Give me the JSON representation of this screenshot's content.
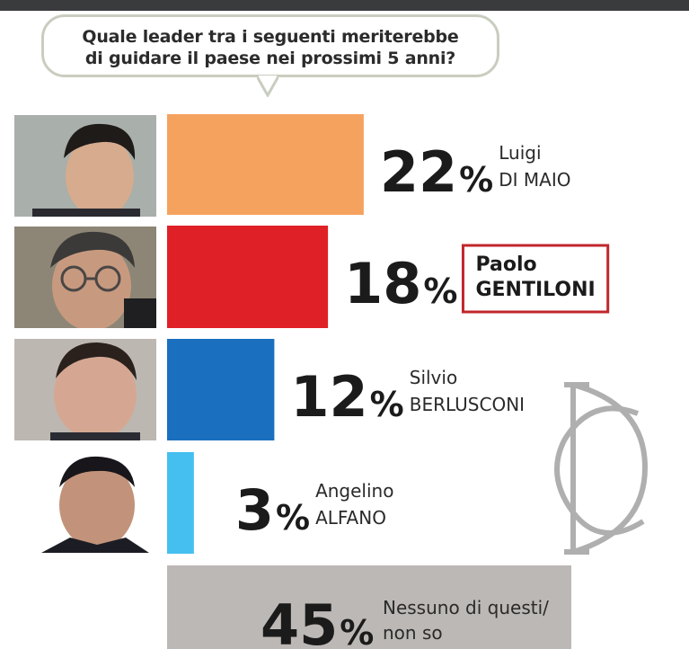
{
  "question": "Quale leader tra i seguenti meriterebbe\ndi guidare il paese nei prossimi 5 anni?",
  "colors": {
    "topbar": "#3a3b3d",
    "bubble_border": "#c9cdbf",
    "highlight_box": "#c0272d"
  },
  "chart_data": {
    "type": "bar",
    "orientation": "horizontal",
    "unit": "%",
    "title": "Quale leader tra i seguenti meriterebbe di guidare il paese nei prossimi 5 anni?",
    "xlim": [
      0,
      100
    ],
    "bars": [
      {
        "value": 22,
        "label": "22%",
        "name_line1": "Luigi",
        "name_line2": "DI MAIO",
        "color": "#f6a25f",
        "photo": "portrait-luigi-di-maio",
        "highlight": false
      },
      {
        "value": 18,
        "label": "18%",
        "name_line1": "Paolo",
        "name_line2": "GENTILONI",
        "color": "#e02027",
        "photo": "portrait-paolo-gentiloni",
        "highlight": true
      },
      {
        "value": 12,
        "label": "12%",
        "name_line1": "Silvio",
        "name_line2": "BERLUSCONI",
        "color": "#1a6fbf",
        "photo": "portrait-silvio-berlusconi",
        "highlight": false
      },
      {
        "value": 3,
        "label": "3%",
        "name_line1": "Angelino",
        "name_line2": "ALFANO",
        "color": "#44bff0",
        "photo": "portrait-angelino-alfano",
        "highlight": false
      },
      {
        "value": 45,
        "label": "45%",
        "name_line1": "Nessuno di questi/",
        "name_line2": "non so",
        "color": "#bcb8b5",
        "photo": null,
        "highlight": false
      }
    ]
  }
}
